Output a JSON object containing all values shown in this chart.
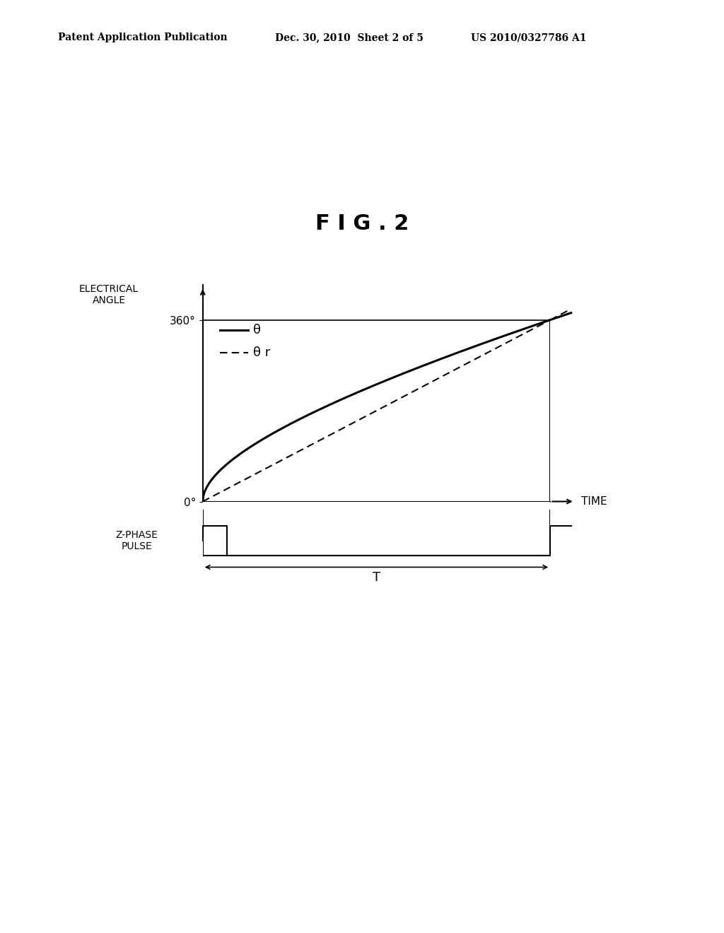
{
  "fig_title": "F I G . 2",
  "header_left": "Patent Application Publication",
  "header_mid": "Dec. 30, 2010  Sheet 2 of 5",
  "header_right": "US 2010/0327786 A1",
  "background_color": "#ffffff",
  "line_color": "#000000",
  "upper_ylabel": "ELECTRICAL\nANGLE",
  "upper_y0_label": "0°",
  "upper_y360_label": "360°",
  "lower_ylabel": "Z-PHASE\nPULSE",
  "x_label": "TIME",
  "T_label": "T",
  "theta_label": "θ",
  "thetar_label": "θ r"
}
